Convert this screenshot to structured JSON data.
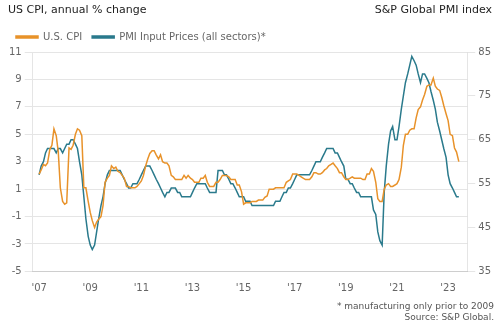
{
  "chart_data": {
    "type": "line",
    "ylabel": "US CPI, annual % change",
    "y2label": "S&P Global PMI index",
    "annotations": [
      "* manufacturing only prior to 2009",
      "Source: S&P Global."
    ],
    "x": [
      2007.0,
      2007.08,
      2007.17,
      2007.25,
      2007.33,
      2007.42,
      2007.5,
      2007.58,
      2007.67,
      2007.75,
      2007.83,
      2007.92,
      2008.0,
      2008.08,
      2008.17,
      2008.25,
      2008.33,
      2008.42,
      2008.5,
      2008.58,
      2008.67,
      2008.75,
      2008.83,
      2008.92,
      2009.0,
      2009.08,
      2009.17,
      2009.25,
      2009.33,
      2009.42,
      2009.5,
      2009.58,
      2009.67,
      2009.75,
      2009.83,
      2009.92,
      2010.0,
      2010.08,
      2010.17,
      2010.25,
      2010.33,
      2010.42,
      2010.5,
      2010.58,
      2010.67,
      2010.75,
      2010.83,
      2010.92,
      2011.0,
      2011.08,
      2011.17,
      2011.25,
      2011.33,
      2011.42,
      2011.5,
      2011.58,
      2011.67,
      2011.75,
      2011.83,
      2011.92,
      2012.0,
      2012.08,
      2012.17,
      2012.25,
      2012.33,
      2012.42,
      2012.5,
      2012.58,
      2012.67,
      2012.75,
      2012.83,
      2012.92,
      2013.0,
      2013.08,
      2013.17,
      2013.25,
      2013.33,
      2013.42,
      2013.5,
      2013.58,
      2013.67,
      2013.75,
      2013.83,
      2013.92,
      2014.0,
      2014.08,
      2014.17,
      2014.25,
      2014.33,
      2014.42,
      2014.5,
      2014.58,
      2014.67,
      2014.75,
      2014.83,
      2014.92,
      2015.0,
      2015.08,
      2015.17,
      2015.25,
      2015.33,
      2015.42,
      2015.5,
      2015.58,
      2015.67,
      2015.75,
      2015.83,
      2015.92,
      2016.0,
      2016.08,
      2016.17,
      2016.25,
      2016.33,
      2016.42,
      2016.5,
      2016.58,
      2016.67,
      2016.75,
      2016.83,
      2016.92,
      2017.0,
      2017.08,
      2017.17,
      2017.25,
      2017.33,
      2017.42,
      2017.5,
      2017.58,
      2017.67,
      2017.75,
      2017.83,
      2017.92,
      2018.0,
      2018.08,
      2018.17,
      2018.25,
      2018.33,
      2018.42,
      2018.5,
      2018.58,
      2018.67,
      2018.75,
      2018.83,
      2018.92,
      2019.0,
      2019.08,
      2019.17,
      2019.25,
      2019.33,
      2019.42,
      2019.5,
      2019.58,
      2019.67,
      2019.75,
      2019.83,
      2019.92,
      2020.0,
      2020.08,
      2020.17,
      2020.25,
      2020.33,
      2020.42,
      2020.5,
      2020.58,
      2020.67,
      2020.75,
      2020.83,
      2020.92,
      2021.0,
      2021.08,
      2021.17,
      2021.25,
      2021.33,
      2021.42,
      2021.5,
      2021.58,
      2021.67,
      2021.75,
      2021.83,
      2021.92,
      2022.0,
      2022.08,
      2022.17,
      2022.25,
      2022.33,
      2022.42,
      2022.5,
      2022.58,
      2022.67,
      2022.75,
      2022.83,
      2022.92,
      2023.0,
      2023.08,
      2023.17,
      2023.25,
      2023.33,
      2023.42
    ],
    "series": [
      {
        "name": "U.S. CPI",
        "color": "#E8922A",
        "values": [
          2.1,
          2.4,
          2.8,
          2.7,
          2.9,
          3.9,
          4.2,
          5.4,
          4.9,
          3.7,
          1.1,
          0.1,
          -0.1,
          0.0,
          4.0,
          3.9,
          4.2,
          5.0,
          5.4,
          5.3,
          4.9,
          1.1,
          1.1,
          0.1,
          -0.7,
          -1.3,
          -1.8,
          -1.4,
          -1.2,
          -1.0,
          -0.2,
          1.5,
          1.8,
          2.0,
          2.7,
          2.5,
          2.6,
          2.3,
          2.2,
          2.0,
          1.8,
          1.2,
          1.2,
          1.1,
          1.1,
          1.1,
          1.2,
          1.4,
          1.6,
          2.0,
          2.7,
          3.2,
          3.6,
          3.8,
          3.8,
          3.5,
          3.2,
          3.5,
          3.0,
          2.9,
          2.9,
          2.7,
          2.0,
          1.9,
          1.7,
          1.7,
          1.7,
          1.7,
          2.0,
          1.8,
          2.0,
          1.8,
          1.7,
          1.5,
          1.5,
          1.5,
          1.8,
          1.8,
          2.0,
          1.5,
          1.2,
          1.2,
          1.2,
          1.5,
          1.5,
          1.7,
          2.0,
          2.0,
          2.0,
          1.9,
          1.7,
          1.7,
          1.7,
          1.3,
          1.3,
          0.8,
          -0.1,
          0.0,
          0.0,
          0.0,
          0.1,
          0.1,
          0.1,
          0.2,
          0.2,
          0.2,
          0.4,
          0.5,
          1.0,
          1.0,
          1.0,
          1.1,
          1.1,
          1.1,
          1.1,
          1.1,
          1.5,
          1.6,
          1.7,
          2.1,
          2.1,
          2.1,
          2.0,
          1.9,
          1.8,
          1.7,
          1.7,
          1.7,
          1.9,
          2.2,
          2.2,
          2.1,
          2.1,
          2.2,
          2.4,
          2.5,
          2.7,
          2.8,
          2.9,
          2.7,
          2.5,
          2.2,
          2.2,
          1.9,
          1.7,
          1.7,
          1.8,
          1.9,
          1.8,
          1.8,
          1.8,
          1.8,
          1.7,
          1.7,
          2.1,
          2.1,
          2.5,
          2.3,
          1.5,
          0.3,
          0.1,
          0.1,
          1.0,
          1.3,
          1.4,
          1.2,
          1.2,
          1.3,
          1.4,
          1.7,
          2.6,
          4.2,
          5.0,
          5.0,
          5.3,
          5.4,
          5.4,
          6.2,
          6.8,
          7.0,
          7.5,
          7.9,
          8.5,
          8.6,
          8.6,
          9.1,
          8.5,
          8.3,
          8.2,
          7.7,
          7.1,
          6.5,
          6.0,
          5.0,
          4.9,
          4.0,
          3.7,
          3.0
        ]
      },
      {
        "name": "PMI Input Prices (all sectors)*",
        "color": "#2A7A8C",
        "axis": "y2",
        "values": [
          57,
          59,
          60,
          62,
          63,
          63,
          63,
          63,
          62,
          63,
          63,
          62,
          63,
          64,
          64,
          65,
          65,
          64,
          63,
          60,
          57,
          52,
          47,
          43,
          41,
          40,
          41,
          44,
          47,
          50,
          52,
          55,
          57,
          58,
          58,
          58,
          58,
          58,
          58,
          57,
          56,
          55,
          54,
          54,
          55,
          55,
          55,
          56,
          57,
          58,
          59,
          59,
          59,
          58,
          57,
          56,
          55,
          54,
          53,
          52,
          53,
          53,
          54,
          54,
          54,
          53,
          53,
          52,
          52,
          52,
          52,
          52,
          53,
          54,
          55,
          55,
          55,
          55,
          55,
          54,
          53,
          53,
          53,
          53,
          58,
          58,
          58,
          57,
          57,
          56,
          55,
          55,
          54,
          53,
          52,
          52,
          52,
          51,
          51,
          51,
          50,
          50,
          50,
          50,
          50,
          50,
          50,
          50,
          50,
          50,
          50,
          51,
          51,
          51,
          52,
          53,
          53,
          54,
          54,
          55,
          56,
          57,
          57,
          57,
          57,
          57,
          57,
          57,
          58,
          59,
          60,
          60,
          60,
          61,
          62,
          63,
          63,
          63,
          63,
          62,
          62,
          61,
          60,
          59,
          56,
          56,
          55,
          55,
          54,
          53,
          53,
          52,
          52,
          52,
          52,
          52,
          52,
          49,
          48,
          44,
          42,
          41,
          53,
          59,
          64,
          67,
          68,
          65,
          65,
          68,
          72,
          75,
          78,
          80,
          82,
          84,
          83,
          82,
          80,
          78,
          80,
          80,
          79,
          78,
          76,
          74,
          72,
          69,
          67,
          65,
          63,
          61,
          57,
          55,
          54,
          53,
          52,
          52
        ]
      }
    ],
    "xlim": [
      2006.75,
      2023.75
    ],
    "xticks": [
      {
        "value": 2007,
        "label": "'07"
      },
      {
        "value": 2009,
        "label": "'09"
      },
      {
        "value": 2011,
        "label": "'11"
      },
      {
        "value": 2013,
        "label": "'13"
      },
      {
        "value": 2015,
        "label": "'15"
      },
      {
        "value": 2017,
        "label": "'17"
      },
      {
        "value": 2019,
        "label": "'19"
      },
      {
        "value": 2021,
        "label": "'21"
      },
      {
        "value": 2023,
        "label": "'23"
      }
    ],
    "ylim": [
      -5,
      11
    ],
    "yticks": [
      -5,
      -3,
      -1,
      1,
      3,
      5,
      7,
      9,
      11
    ],
    "y2lim": [
      35,
      85
    ],
    "y2ticks": [
      35,
      45,
      55,
      65,
      75,
      85
    ],
    "grid": true,
    "legend": "upper left"
  }
}
